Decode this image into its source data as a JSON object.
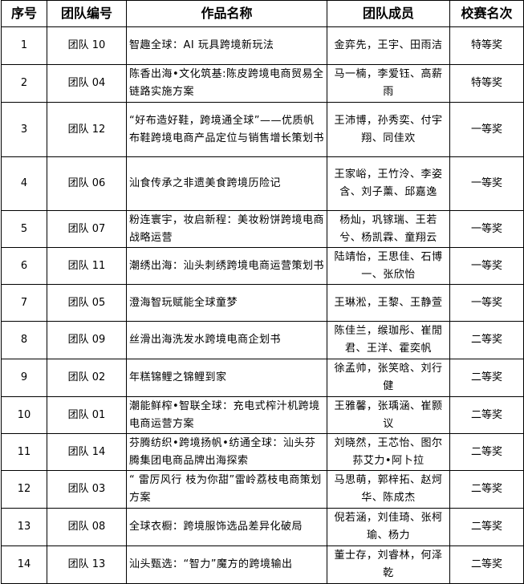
{
  "headers": [
    "序号",
    "团队编号",
    "作品名称",
    "团队成员",
    "校赛名次"
  ],
  "rows": [
    {
      "no": "1",
      "team": "团队 10",
      "title": "智趣全球：AI 玩具跨境新玩法",
      "members": "金弈先，王宇、田雨洁",
      "rank": "特等奖"
    },
    {
      "no": "2",
      "team": "团队 04",
      "title": "陈香出海•文化筑基:陈皮跨境电商贸易全链路实施方案",
      "members": "马一楠，李爱钰、高薪雨",
      "rank": "特等奖"
    },
    {
      "no": "3",
      "team": "团队 12",
      "title": "“好布造好鞋，跨境通全球”——优质帆布鞋跨境电商产品定位与销售增长策划书",
      "members": "王沛博，孙秀奕、付宇翔、同佳欢",
      "rank": "一等奖"
    },
    {
      "no": "4",
      "team": "团队 06",
      "title": "汕食传承之非遗美食跨境历险记",
      "members": "王家峪，王竹泠、李姿含、刘子薰、邱嘉逸",
      "rank": "一等奖"
    },
    {
      "no": "5",
      "team": "团队 07",
      "title": "粉连寰宇，妆启新程：美妆粉饼跨境电商战略运营",
      "members": "杨灿，巩镓瑞、王若兮、杨凯霖、童翔云",
      "rank": "一等奖"
    },
    {
      "no": "6",
      "team": "团队 11",
      "title": "潮绣出海：汕头刺绣跨境电商运营策划书",
      "members": "陆靖怡，王思佳、石博一、张欣怡",
      "rank": "一等奖"
    },
    {
      "no": "7",
      "team": "团队 05",
      "title": "澄海智玩赋能全球童梦",
      "members": "王琳淞，王黎、王静萱",
      "rank": "一等奖"
    },
    {
      "no": "8",
      "team": "团队 09",
      "title": "丝滑出海洗发水跨境电商企划书",
      "members": "陈佳兰，缑珈彤、崔閒君、王洋、霍奕帆",
      "rank": "二等奖"
    },
    {
      "no": "9",
      "team": "团队 02",
      "title": "年糕锦鲤之锦鲤到家",
      "members": "徐孟帅，张笑晗、刘行健",
      "rank": "二等奖"
    },
    {
      "no": "10",
      "team": "团队 01",
      "title": "潮能鲜榨•智联全球：充电式榨汁机跨境电商运营方案",
      "members": "王雅馨，张瑀涵、崔颢议",
      "rank": "二等奖"
    },
    {
      "no": "11",
      "team": "团队 14",
      "title": "芬腾纺织•跨境扬帆•纺通全球：汕头芬腾集团电商品牌出海探索",
      "members": "刘晓然，王芯怡、图尔荪艾力•阿卜拉",
      "rank": "二等奖"
    },
    {
      "no": "12",
      "team": "团队 03",
      "title": "“ 雷厉风行 枝为你甜”雷岭荔枝电商策划方案",
      "members": "马思萌，郭梓拓、赵炣华、陈成杰",
      "rank": "二等奖"
    },
    {
      "no": "13",
      "team": "团队 08",
      "title": "全球衣橱：跨境服饰选品差异化破局",
      "members": "倪若涵，刘佳琦、张柯瑜、杨力",
      "rank": "二等奖"
    },
    {
      "no": "14",
      "team": "团队 13",
      "title": "汕头甄选：“智力”魔方的跨境输出",
      "members": "董士存，刘睿林，何泽乾",
      "rank": "二等奖"
    }
  ]
}
